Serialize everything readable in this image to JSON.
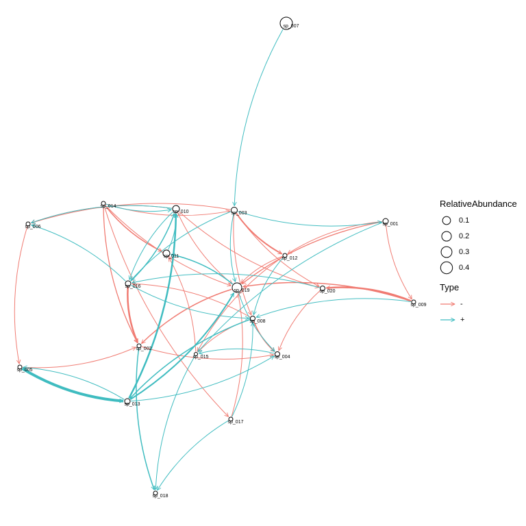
{
  "nodes": [
    {
      "label": "sp_007"
    },
    {
      "label": "sp_014"
    },
    {
      "label": "sp_010"
    },
    {
      "label": "sp_003"
    },
    {
      "label": "sp_001"
    },
    {
      "label": "sp_006"
    },
    {
      "label": "sp_011"
    },
    {
      "label": "sp_012"
    },
    {
      "label": "sp_016"
    },
    {
      "label": "sp_019"
    },
    {
      "label": "sp_020"
    },
    {
      "label": "sp_009"
    },
    {
      "label": "sp_008"
    },
    {
      "label": "sp_002"
    },
    {
      "label": "sp_015"
    },
    {
      "label": "sp_004"
    },
    {
      "label": "sp_005"
    },
    {
      "label": "sp_013"
    },
    {
      "label": "sp_017"
    },
    {
      "label": "sp_018"
    }
  ],
  "legend": {
    "size_title": "RelativeAbundance",
    "size_breaks": [
      0.1,
      0.2,
      0.3,
      0.4
    ],
    "type_title": "Type",
    "types": [
      {
        "label": "-",
        "color": "#f07b72"
      },
      {
        "label": "+",
        "color": "#3fbcc0"
      }
    ]
  }
}
